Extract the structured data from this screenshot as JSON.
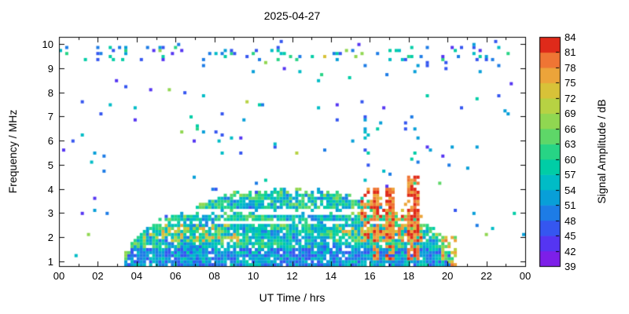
{
  "title": "2025-04-27",
  "chart_data": {
    "type": "heatmap",
    "title": "2025-04-27",
    "xlabel": "UT Time / hrs",
    "ylabel": "Frequency / MHz",
    "cblabel": "Signal Amplitude / dB",
    "x_range": [
      0,
      24
    ],
    "y_range": [
      0.8,
      10.3
    ],
    "x_ticks": [
      {
        "t": 0,
        "label": "00"
      },
      {
        "t": 2,
        "label": "02"
      },
      {
        "t": 4,
        "label": "04"
      },
      {
        "t": 6,
        "label": "06"
      },
      {
        "t": 8,
        "label": "08"
      },
      {
        "t": 10,
        "label": "10"
      },
      {
        "t": 12,
        "label": "12"
      },
      {
        "t": 14,
        "label": "14"
      },
      {
        "t": 16,
        "label": "16"
      },
      {
        "t": 18,
        "label": "18"
      },
      {
        "t": 20,
        "label": "20"
      },
      {
        "t": 22,
        "label": "22"
      },
      {
        "t": 24,
        "label": "00"
      }
    ],
    "y_ticks": [
      1,
      2,
      3,
      4,
      5,
      6,
      7,
      8,
      9,
      10
    ],
    "colorbar": {
      "min": 39,
      "max": 84,
      "step": 3,
      "tick_labels": [
        39,
        42,
        45,
        48,
        51,
        54,
        57,
        60,
        63,
        66,
        69,
        72,
        75,
        78,
        81,
        84
      ],
      "palette": [
        "#7d1fe8",
        "#5535f2",
        "#3556f0",
        "#1d7ce6",
        "#089fd8",
        "#00bcc6",
        "#00cda6",
        "#27d485",
        "#5ed768",
        "#90d751",
        "#b7d243",
        "#d8c238",
        "#eca43a",
        "#ef7534",
        "#df2a1a"
      ]
    },
    "frame_color": "#000000",
    "background": "#ffffff",
    "seed": 987654321,
    "features": {
      "grid": {
        "t_bins": 150,
        "f_min": 0.8,
        "f_max": 10.3,
        "f_step": 0.125
      },
      "dome": {
        "t_start": 3.3,
        "t_end": 20.3,
        "peak_amp": 2.95,
        "fill_prob": 0.9,
        "gaps": [
          [
            2.52,
            2.72
          ],
          [
            2.98,
            3.14
          ]
        ],
        "low_band_top": 1.6,
        "orange_band": {
          "f": [
            1.85,
            2.5
          ],
          "t1": [
            4.3,
            9.2
          ],
          "t2": [
            14.3,
            19.8
          ],
          "prob": 0.38
        }
      },
      "red_region": {
        "t": [
          15.55,
          18.75
        ],
        "f": [
          1.85,
          4.15
        ],
        "prob": 0.62
      },
      "red_spikes": [
        {
          "t": [
            16.15,
            16.55
          ],
          "f_top": 4.1
        },
        {
          "t": [
            16.8,
            17.3
          ],
          "f_top": 4.0
        },
        {
          "t": [
            17.95,
            18.55
          ],
          "f_top": 4.6
        }
      ],
      "tail": {
        "t": [
          19.7,
          20.45
        ],
        "f": [
          0.85,
          2.0
        ],
        "prob": 0.5
      },
      "top_band": {
        "f": [
          9.3,
          9.95
        ],
        "prob": 0.1,
        "orange_t": [
          13.3,
          16.6
        ]
      },
      "noise": {
        "prob": 0.016
      },
      "noise_columns": [
        {
          "t": 15.8,
          "f": [
            4.2,
            9.3
          ],
          "prob": 0.12
        },
        {
          "t": 18.45,
          "f": [
            4.7,
            9.3
          ],
          "prob": 0.1
        }
      ]
    }
  }
}
